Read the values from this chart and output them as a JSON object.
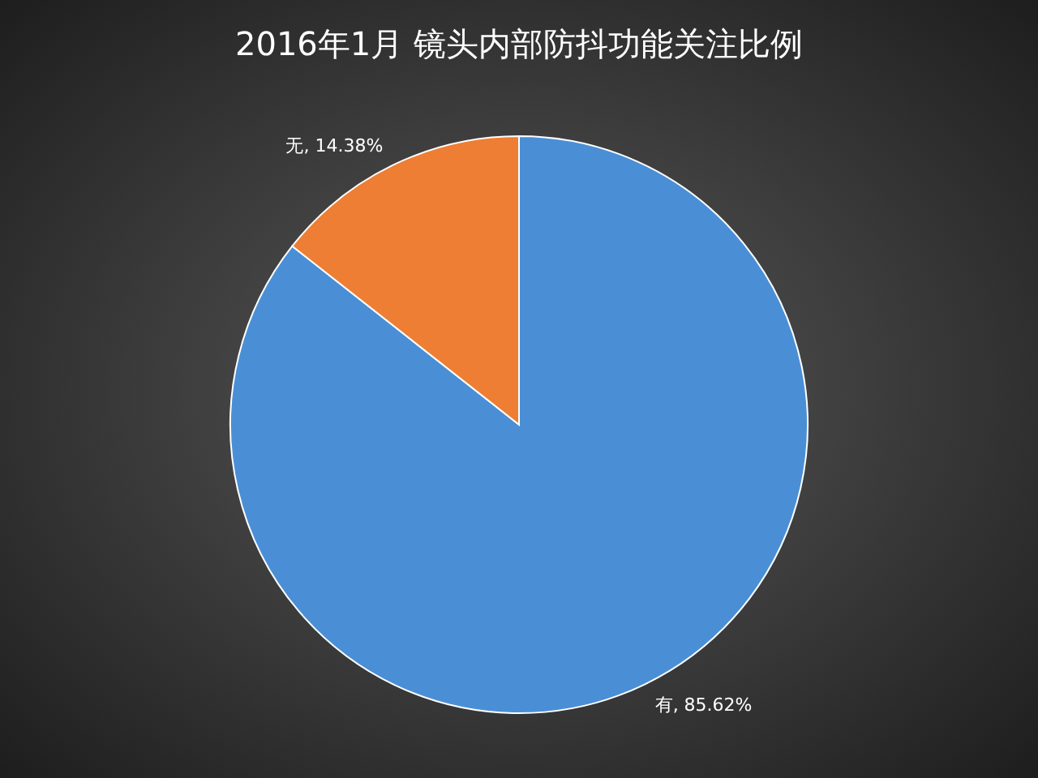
{
  "chart_data": {
    "type": "pie",
    "title": "2016年1月 镜头内部防抖功能关注比例",
    "categories": [
      "有",
      "无"
    ],
    "values": [
      85.62,
      14.38
    ],
    "colors": [
      "#4a8fd6",
      "#ee7e33"
    ],
    "value_labels": [
      ", 85.62%",
      ", 14.38%"
    ],
    "legend": false
  }
}
